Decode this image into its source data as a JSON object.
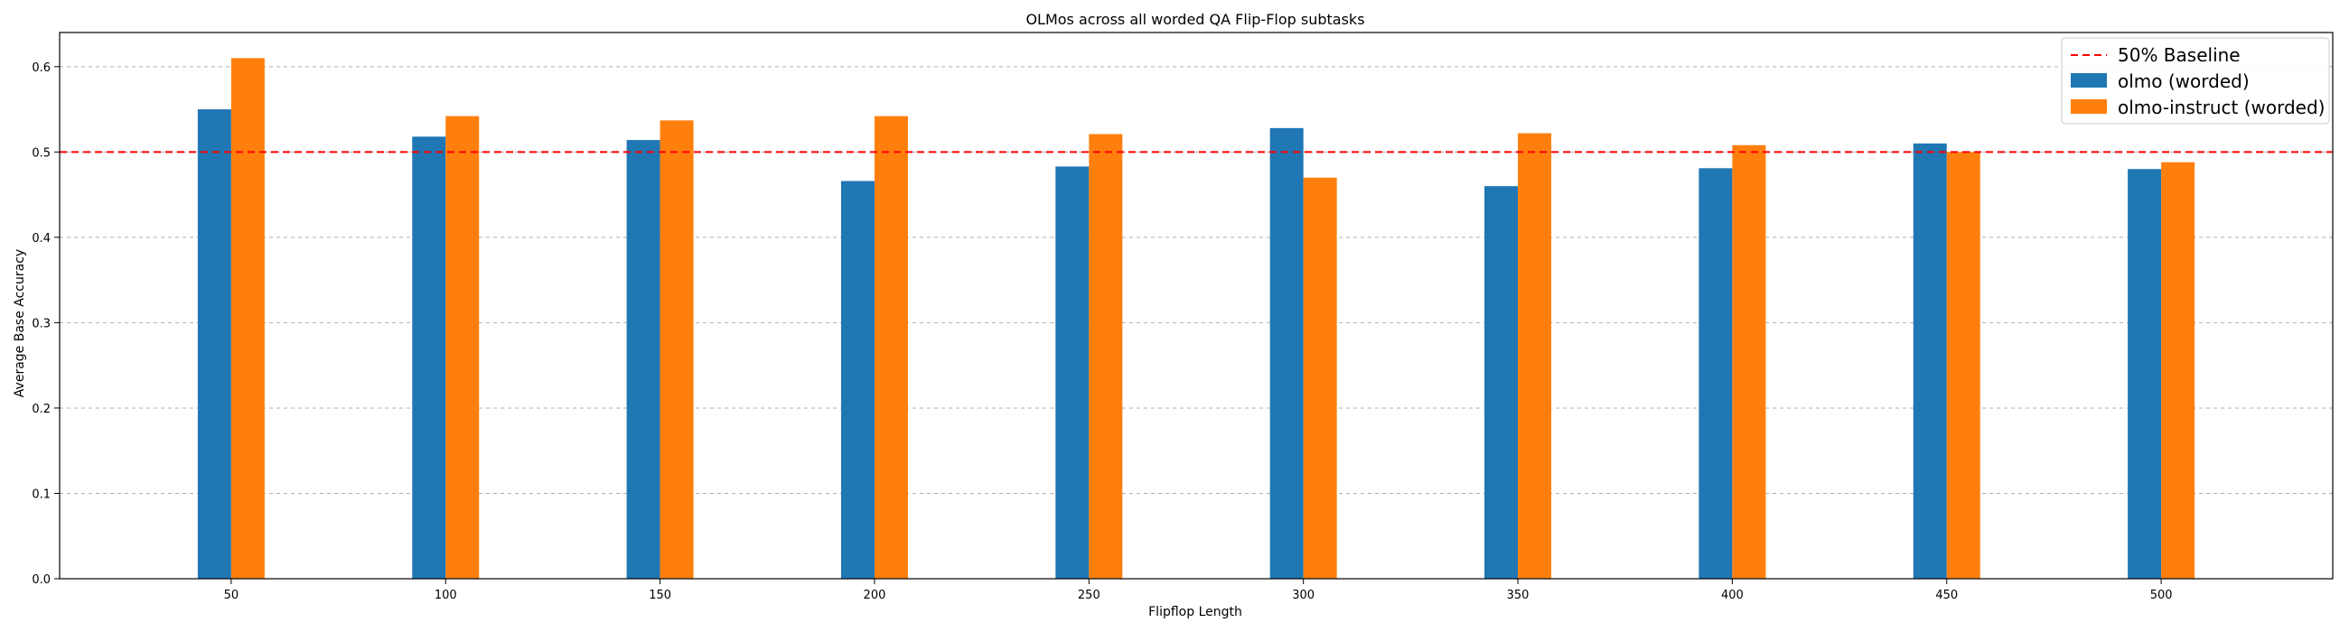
{
  "chart_data": {
    "type": "bar",
    "title": "OLMos across all worded QA Flip-Flop subtasks",
    "xlabel": "Flipflop Length",
    "ylabel": "Average Base Accuracy",
    "categories": [
      "50",
      "100",
      "150",
      "200",
      "250",
      "300",
      "350",
      "400",
      "450",
      "500"
    ],
    "series": [
      {
        "name": "olmo (worded)",
        "color": "#1f77b4",
        "values": [
          0.55,
          0.518,
          0.514,
          0.466,
          0.483,
          0.528,
          0.46,
          0.481,
          0.51,
          0.48
        ]
      },
      {
        "name": "olmo-instruct (worded)",
        "color": "#ff7f0e",
        "values": [
          0.61,
          0.542,
          0.537,
          0.542,
          0.521,
          0.47,
          0.522,
          0.508,
          0.5,
          0.488
        ]
      }
    ],
    "baseline": {
      "name": "50% Baseline",
      "value": 0.5,
      "color": "#ff0000",
      "style": "dashed"
    },
    "ylim": [
      0,
      0.64
    ],
    "yticks": [
      "0.0",
      "0.1",
      "0.2",
      "0.3",
      "0.4",
      "0.5",
      "0.6"
    ],
    "grid": "y-dashed",
    "legend_position": "top-right"
  }
}
